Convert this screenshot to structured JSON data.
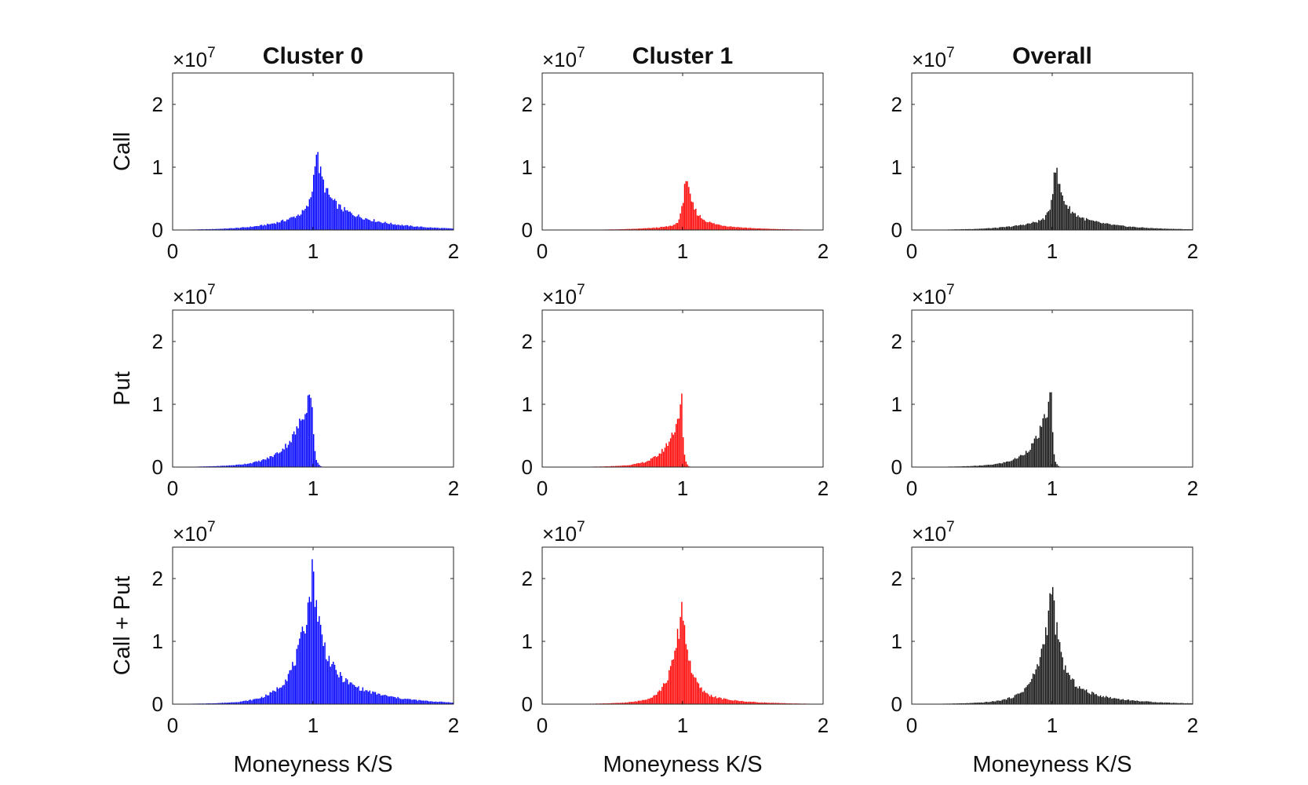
{
  "figure": {
    "column_titles": [
      "Cluster 0",
      "Cluster 1",
      "Overall"
    ],
    "row_labels": [
      "Call",
      "Put",
      "Call + Put"
    ],
    "xlabel": "Moneyness K/S",
    "multiplier_base": "×10",
    "multiplier_exp": "7"
  },
  "chart_data": [
    {
      "type": "bar",
      "panel": "Cluster 0 / Call",
      "color": "#0000ff",
      "xlim": [
        0,
        2
      ],
      "ylim": [
        0,
        2.5
      ],
      "x_ticks": [
        "0",
        "1",
        "2"
      ],
      "y_ticks": [
        "0",
        "1",
        "2"
      ],
      "y_scale": "1e7",
      "grid": false,
      "peak_x": 1.02,
      "peak": 1.4,
      "left_width": 0.02,
      "left_base": 0.3,
      "right_width": 0.05,
      "right_base": 0.48,
      "right_tail": 0.3,
      "tail_scale": 0.9
    },
    {
      "type": "bar",
      "panel": "Cluster 1 / Call",
      "color": "#ff0000",
      "xlim": [
        0,
        2
      ],
      "ylim": [
        0,
        2.5
      ],
      "x_ticks": [
        "0",
        "1",
        "2"
      ],
      "y_ticks": [
        "0",
        "1",
        "2"
      ],
      "y_scale": "1e7",
      "grid": false,
      "peak_x": 1.02,
      "peak": 0.97,
      "left_width": 0.02,
      "left_base": 0.1,
      "right_width": 0.05,
      "right_base": 0.3,
      "right_tail": 0.25,
      "tail_scale": 0.7
    },
    {
      "type": "bar",
      "panel": "Overall / Call",
      "color": "#111111",
      "xlim": [
        0,
        2
      ],
      "ylim": [
        0,
        2.5
      ],
      "x_ticks": [
        "0",
        "1",
        "2"
      ],
      "y_ticks": [
        "0",
        "1",
        "2"
      ],
      "y_scale": "1e7",
      "grid": false,
      "peak_x": 1.02,
      "peak": 1.18,
      "left_width": 0.02,
      "left_base": 0.2,
      "right_width": 0.05,
      "right_base": 0.38,
      "right_tail": 0.28,
      "tail_scale": 0.8
    },
    {
      "type": "bar",
      "panel": "Cluster 0 / Put",
      "color": "#0000ff",
      "xlim": [
        0,
        2
      ],
      "ylim": [
        0,
        2.5
      ],
      "x_ticks": [
        "0",
        "1",
        "2"
      ],
      "y_ticks": [
        "0",
        "1",
        "2"
      ],
      "y_scale": "1e7",
      "grid": false,
      "peak_x": 0.99,
      "peak": 1.3,
      "left_width": 0.12,
      "left_base": 0.2,
      "right_width": 0.015,
      "right_base": 0.0,
      "right_tail": 0.1,
      "tail_scale": 0.0
    },
    {
      "type": "bar",
      "panel": "Cluster 1 / Put",
      "color": "#ff0000",
      "xlim": [
        0,
        2
      ],
      "ylim": [
        0,
        2.5
      ],
      "x_ticks": [
        "0",
        "1",
        "2"
      ],
      "y_ticks": [
        "0",
        "1",
        "2"
      ],
      "y_scale": "1e7",
      "grid": false,
      "peak_x": 0.995,
      "peak": 1.05,
      "left_width": 0.09,
      "left_base": 0.1,
      "right_width": 0.012,
      "right_base": 0.0,
      "right_tail": 0.1,
      "tail_scale": 0.0
    },
    {
      "type": "bar",
      "panel": "Overall / Put",
      "color": "#111111",
      "xlim": [
        0,
        2
      ],
      "ylim": [
        0,
        2.5
      ],
      "x_ticks": [
        "0",
        "1",
        "2"
      ],
      "y_ticks": [
        "0",
        "1",
        "2"
      ],
      "y_scale": "1e7",
      "grid": false,
      "peak_x": 0.995,
      "peak": 1.18,
      "left_width": 0.1,
      "left_base": 0.15,
      "right_width": 0.012,
      "right_base": 0.0,
      "right_tail": 0.1,
      "tail_scale": 0.0
    },
    {
      "type": "bar",
      "panel": "Cluster 0 / Call + Put",
      "color": "#0000ff",
      "xlim": [
        0,
        2
      ],
      "ylim": [
        0,
        2.5
      ],
      "x_ticks": [
        "0",
        "1",
        "2"
      ],
      "y_ticks": [
        "0",
        "1",
        "2"
      ],
      "y_scale": "1e7",
      "grid": false,
      "peak_x": 1.0,
      "peak": 2.15,
      "left_width": 0.1,
      "left_base": 0.15,
      "right_width": 0.06,
      "right_base": 0.35,
      "right_tail": 0.3,
      "tail_scale": 1.0
    },
    {
      "type": "bar",
      "panel": "Cluster 1 / Call + Put",
      "color": "#ff0000",
      "xlim": [
        0,
        2
      ],
      "ylim": [
        0,
        2.5
      ],
      "x_ticks": [
        "0",
        "1",
        "2"
      ],
      "y_ticks": [
        "0",
        "1",
        "2"
      ],
      "y_scale": "1e7",
      "grid": false,
      "peak_x": 1.0,
      "peak": 1.68,
      "left_width": 0.07,
      "left_base": 0.08,
      "right_width": 0.05,
      "right_base": 0.22,
      "right_tail": 0.25,
      "tail_scale": 0.7
    },
    {
      "type": "bar",
      "panel": "Overall / Call + Put",
      "color": "#111111",
      "xlim": [
        0,
        2
      ],
      "ylim": [
        0,
        2.5
      ],
      "x_ticks": [
        "0",
        "1",
        "2"
      ],
      "y_ticks": [
        "0",
        "1",
        "2"
      ],
      "y_scale": "1e7",
      "grid": false,
      "peak_x": 1.0,
      "peak": 1.92,
      "left_width": 0.08,
      "left_base": 0.12,
      "right_width": 0.055,
      "right_base": 0.28,
      "right_tail": 0.28,
      "tail_scale": 0.85
    }
  ]
}
